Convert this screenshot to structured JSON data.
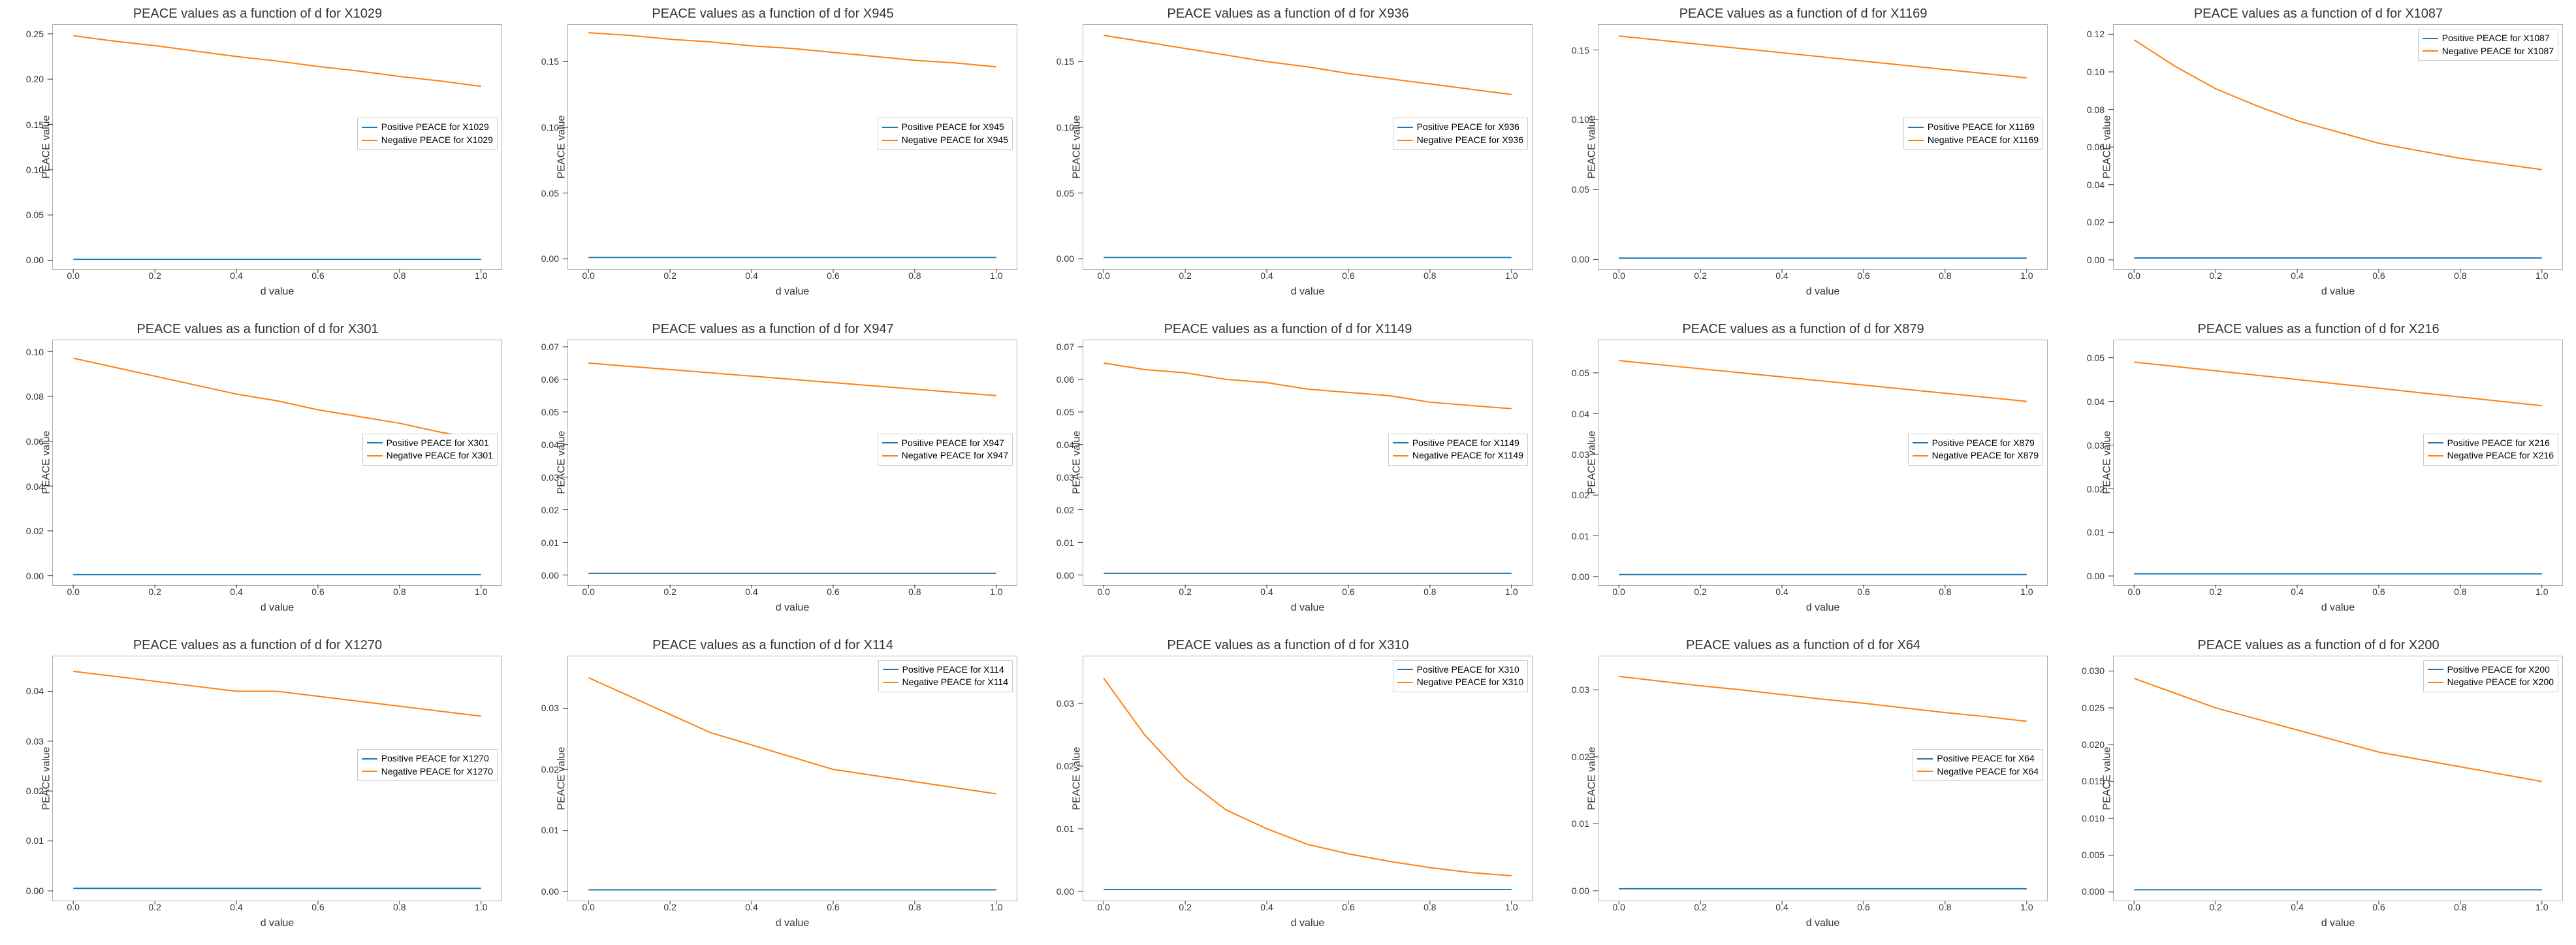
{
  "global": {
    "background_color": "#ffffff",
    "grid_rows": 3,
    "grid_cols": 5,
    "xlabel": "d value",
    "ylabel": "PEACE value",
    "title_prefix": "PEACE values as a function of d for ",
    "legend_pos_prefix": "Positive PEACE for ",
    "legend_neg_prefix": "Negative PEACE for ",
    "line_colors": {
      "positive": "#1f77b4",
      "negative": "#ff7f0e"
    },
    "border_color": "#b0b0b0",
    "tick_fontsize": 14,
    "label_fontsize": 16,
    "title_fontsize": 20,
    "line_width": 2,
    "xlim": [
      -0.05,
      1.05
    ],
    "xticks": [
      0.0,
      0.2,
      0.4,
      0.6,
      0.8,
      1.0
    ],
    "xtick_labels": [
      "0.0",
      "0.2",
      "0.4",
      "0.6",
      "0.8",
      "1.0"
    ],
    "legend_default_pos": "center-right",
    "x_sample": [
      0.0,
      0.1,
      0.2,
      0.3,
      0.4,
      0.5,
      0.6,
      0.7,
      0.8,
      0.9,
      1.0
    ]
  },
  "panels": [
    {
      "feature": "X1029",
      "ylim": [
        -0.01,
        0.26
      ],
      "yticks": [
        0.0,
        0.05,
        0.1,
        0.15,
        0.2,
        0.25
      ],
      "ytick_labels": [
        "0.00",
        "0.05",
        "0.10",
        "0.15",
        "0.20",
        "0.25"
      ],
      "positive_y": [
        0.001,
        0.001,
        0.001,
        0.001,
        0.001,
        0.001,
        0.001,
        0.001,
        0.001,
        0.001,
        0.001
      ],
      "negative_y": [
        0.248,
        0.242,
        0.237,
        0.231,
        0.225,
        0.22,
        0.214,
        0.209,
        0.203,
        0.198,
        0.192
      ],
      "legend_pos": "center-right"
    },
    {
      "feature": "X945",
      "ylim": [
        -0.008,
        0.178
      ],
      "yticks": [
        0.0,
        0.05,
        0.1,
        0.15
      ],
      "ytick_labels": [
        "0.00",
        "0.05",
        "0.10",
        "0.15"
      ],
      "positive_y": [
        0.001,
        0.001,
        0.001,
        0.001,
        0.001,
        0.001,
        0.001,
        0.001,
        0.001,
        0.001,
        0.001
      ],
      "negative_y": [
        0.172,
        0.17,
        0.167,
        0.165,
        0.162,
        0.16,
        0.157,
        0.154,
        0.151,
        0.149,
        0.146
      ],
      "legend_pos": "center-right"
    },
    {
      "feature": "X936",
      "ylim": [
        -0.008,
        0.178
      ],
      "yticks": [
        0.0,
        0.05,
        0.1,
        0.15
      ],
      "ytick_labels": [
        "0.00",
        "0.05",
        "0.10",
        "0.15"
      ],
      "positive_y": [
        0.001,
        0.001,
        0.001,
        0.001,
        0.001,
        0.001,
        0.001,
        0.001,
        0.001,
        0.001,
        0.001
      ],
      "negative_y": [
        0.17,
        0.165,
        0.16,
        0.155,
        0.15,
        0.146,
        0.141,
        0.137,
        0.133,
        0.129,
        0.125
      ],
      "legend_pos": "center-right"
    },
    {
      "feature": "X1169",
      "ylim": [
        -0.007,
        0.168
      ],
      "yticks": [
        0.0,
        0.05,
        0.1,
        0.15
      ],
      "ytick_labels": [
        "0.00",
        "0.05",
        "0.10",
        "0.15"
      ],
      "positive_y": [
        0.001,
        0.001,
        0.001,
        0.001,
        0.001,
        0.001,
        0.001,
        0.001,
        0.001,
        0.001,
        0.001
      ],
      "negative_y": [
        0.16,
        0.157,
        0.154,
        0.151,
        0.148,
        0.145,
        0.142,
        0.139,
        0.136,
        0.133,
        0.13
      ],
      "legend_pos": "center-right"
    },
    {
      "feature": "X1087",
      "ylim": [
        -0.005,
        0.125
      ],
      "yticks": [
        0.0,
        0.02,
        0.04,
        0.06,
        0.08,
        0.1,
        0.12
      ],
      "ytick_labels": [
        "0.00",
        "0.02",
        "0.04",
        "0.06",
        "0.08",
        "0.10",
        "0.12"
      ],
      "positive_y": [
        0.001,
        0.001,
        0.001,
        0.001,
        0.001,
        0.001,
        0.001,
        0.001,
        0.001,
        0.001,
        0.001
      ],
      "negative_y": [
        0.117,
        0.103,
        0.091,
        0.082,
        0.074,
        0.068,
        0.062,
        0.058,
        0.054,
        0.051,
        0.048
      ],
      "legend_pos": "upper-right"
    },
    {
      "feature": "X301",
      "ylim": [
        -0.004,
        0.105
      ],
      "yticks": [
        0.0,
        0.02,
        0.04,
        0.06,
        0.08,
        0.1
      ],
      "ytick_labels": [
        "0.00",
        "0.02",
        "0.04",
        "0.06",
        "0.08",
        "0.10"
      ],
      "positive_y": [
        0.0005,
        0.0005,
        0.0005,
        0.0005,
        0.0005,
        0.0005,
        0.0005,
        0.0005,
        0.0005,
        0.0005,
        0.0005
      ],
      "negative_y": [
        0.097,
        0.093,
        0.089,
        0.085,
        0.081,
        0.078,
        0.074,
        0.071,
        0.068,
        0.064,
        0.061
      ],
      "legend_pos": "center-right"
    },
    {
      "feature": "X947",
      "ylim": [
        -0.003,
        0.072
      ],
      "yticks": [
        0.0,
        0.01,
        0.02,
        0.03,
        0.04,
        0.05,
        0.06,
        0.07
      ],
      "ytick_labels": [
        "0.00",
        "0.01",
        "0.02",
        "0.03",
        "0.04",
        "0.05",
        "0.06",
        "0.07"
      ],
      "positive_y": [
        0.0005,
        0.0005,
        0.0005,
        0.0005,
        0.0005,
        0.0005,
        0.0005,
        0.0005,
        0.0005,
        0.0005,
        0.0005
      ],
      "negative_y": [
        0.065,
        0.064,
        0.063,
        0.062,
        0.061,
        0.06,
        0.059,
        0.058,
        0.057,
        0.056,
        0.055
      ],
      "legend_pos": "center-right"
    },
    {
      "feature": "X1149",
      "ylim": [
        -0.003,
        0.072
      ],
      "yticks": [
        0.0,
        0.01,
        0.02,
        0.03,
        0.04,
        0.05,
        0.06,
        0.07
      ],
      "ytick_labels": [
        "0.00",
        "0.01",
        "0.02",
        "0.03",
        "0.04",
        "0.05",
        "0.06",
        "0.07"
      ],
      "positive_y": [
        0.0005,
        0.0005,
        0.0005,
        0.0005,
        0.0005,
        0.0005,
        0.0005,
        0.0005,
        0.0005,
        0.0005,
        0.0005
      ],
      "negative_y": [
        0.065,
        0.063,
        0.062,
        0.06,
        0.059,
        0.057,
        0.056,
        0.055,
        0.053,
        0.052,
        0.051
      ],
      "legend_pos": "center-right"
    },
    {
      "feature": "X879",
      "ylim": [
        -0.002,
        0.058
      ],
      "yticks": [
        0.0,
        0.01,
        0.02,
        0.03,
        0.04,
        0.05
      ],
      "ytick_labels": [
        "0.00",
        "0.01",
        "0.02",
        "0.03",
        "0.04",
        "0.05"
      ],
      "positive_y": [
        0.0005,
        0.0005,
        0.0005,
        0.0005,
        0.0005,
        0.0005,
        0.0005,
        0.0005,
        0.0005,
        0.0005,
        0.0005
      ],
      "negative_y": [
        0.053,
        0.052,
        0.051,
        0.05,
        0.049,
        0.048,
        0.047,
        0.046,
        0.045,
        0.044,
        0.043
      ],
      "legend_pos": "center-right"
    },
    {
      "feature": "X216",
      "ylim": [
        -0.002,
        0.054
      ],
      "yticks": [
        0.0,
        0.01,
        0.02,
        0.03,
        0.04,
        0.05
      ],
      "ytick_labels": [
        "0.00",
        "0.01",
        "0.02",
        "0.03",
        "0.04",
        "0.05"
      ],
      "positive_y": [
        0.0005,
        0.0005,
        0.0005,
        0.0005,
        0.0005,
        0.0005,
        0.0005,
        0.0005,
        0.0005,
        0.0005,
        0.0005
      ],
      "negative_y": [
        0.049,
        0.048,
        0.047,
        0.046,
        0.045,
        0.044,
        0.043,
        0.042,
        0.041,
        0.04,
        0.039
      ],
      "legend_pos": "center-right"
    },
    {
      "feature": "X1270",
      "ylim": [
        -0.002,
        0.047
      ],
      "yticks": [
        0.0,
        0.01,
        0.02,
        0.03,
        0.04
      ],
      "ytick_labels": [
        "0.00",
        "0.01",
        "0.02",
        "0.03",
        "0.04"
      ],
      "positive_y": [
        0.0005,
        0.0005,
        0.0005,
        0.0005,
        0.0005,
        0.0005,
        0.0005,
        0.0005,
        0.0005,
        0.0005,
        0.0005
      ],
      "negative_y": [
        0.044,
        0.043,
        0.042,
        0.041,
        0.04,
        0.04,
        0.039,
        0.038,
        0.037,
        0.036,
        0.035
      ],
      "legend_pos": "center-right"
    },
    {
      "feature": "X114",
      "ylim": [
        -0.0015,
        0.0385
      ],
      "yticks": [
        0.0,
        0.01,
        0.02,
        0.03
      ],
      "ytick_labels": [
        "0.00",
        "0.01",
        "0.02",
        "0.03"
      ],
      "positive_y": [
        0.0003,
        0.0003,
        0.0003,
        0.0003,
        0.0003,
        0.0003,
        0.0003,
        0.0003,
        0.0003,
        0.0003,
        0.0003
      ],
      "negative_y": [
        0.035,
        0.032,
        0.029,
        0.026,
        0.024,
        0.022,
        0.02,
        0.019,
        0.018,
        0.017,
        0.016
      ],
      "legend_pos": "upper-right"
    },
    {
      "feature": "X310",
      "ylim": [
        -0.0015,
        0.0375
      ],
      "yticks": [
        0.0,
        0.01,
        0.02,
        0.03
      ],
      "ytick_labels": [
        "0.00",
        "0.01",
        "0.02",
        "0.03"
      ],
      "positive_y": [
        0.0003,
        0.0003,
        0.0003,
        0.0003,
        0.0003,
        0.0003,
        0.0003,
        0.0003,
        0.0003,
        0.0003,
        0.0003
      ],
      "negative_y": [
        0.034,
        0.025,
        0.018,
        0.013,
        0.01,
        0.0075,
        0.006,
        0.0048,
        0.0038,
        0.003,
        0.0025
      ],
      "legend_pos": "upper-right"
    },
    {
      "feature": "X64",
      "ylim": [
        -0.0015,
        0.035
      ],
      "yticks": [
        0.0,
        0.01,
        0.02,
        0.03
      ],
      "ytick_labels": [
        "0.00",
        "0.01",
        "0.02",
        "0.03"
      ],
      "positive_y": [
        0.0003,
        0.0003,
        0.0003,
        0.0003,
        0.0003,
        0.0003,
        0.0003,
        0.0003,
        0.0003,
        0.0003,
        0.0003
      ],
      "negative_y": [
        0.032,
        0.0313,
        0.0306,
        0.03,
        0.0293,
        0.0286,
        0.028,
        0.0273,
        0.0266,
        0.026,
        0.0253
      ],
      "legend_pos": "center-right"
    },
    {
      "feature": "X200",
      "ylim": [
        -0.0012,
        0.032
      ],
      "yticks": [
        0.0,
        0.005,
        0.01,
        0.015,
        0.02,
        0.025,
        0.03
      ],
      "ytick_labels": [
        "0.000",
        "0.005",
        "0.010",
        "0.015",
        "0.020",
        "0.025",
        "0.030"
      ],
      "positive_y": [
        0.0003,
        0.0003,
        0.0003,
        0.0003,
        0.0003,
        0.0003,
        0.0003,
        0.0003,
        0.0003,
        0.0003,
        0.0003
      ],
      "negative_y": [
        0.029,
        0.027,
        0.025,
        0.0235,
        0.022,
        0.0205,
        0.019,
        0.018,
        0.017,
        0.016,
        0.015
      ],
      "legend_pos": "upper-right"
    }
  ]
}
